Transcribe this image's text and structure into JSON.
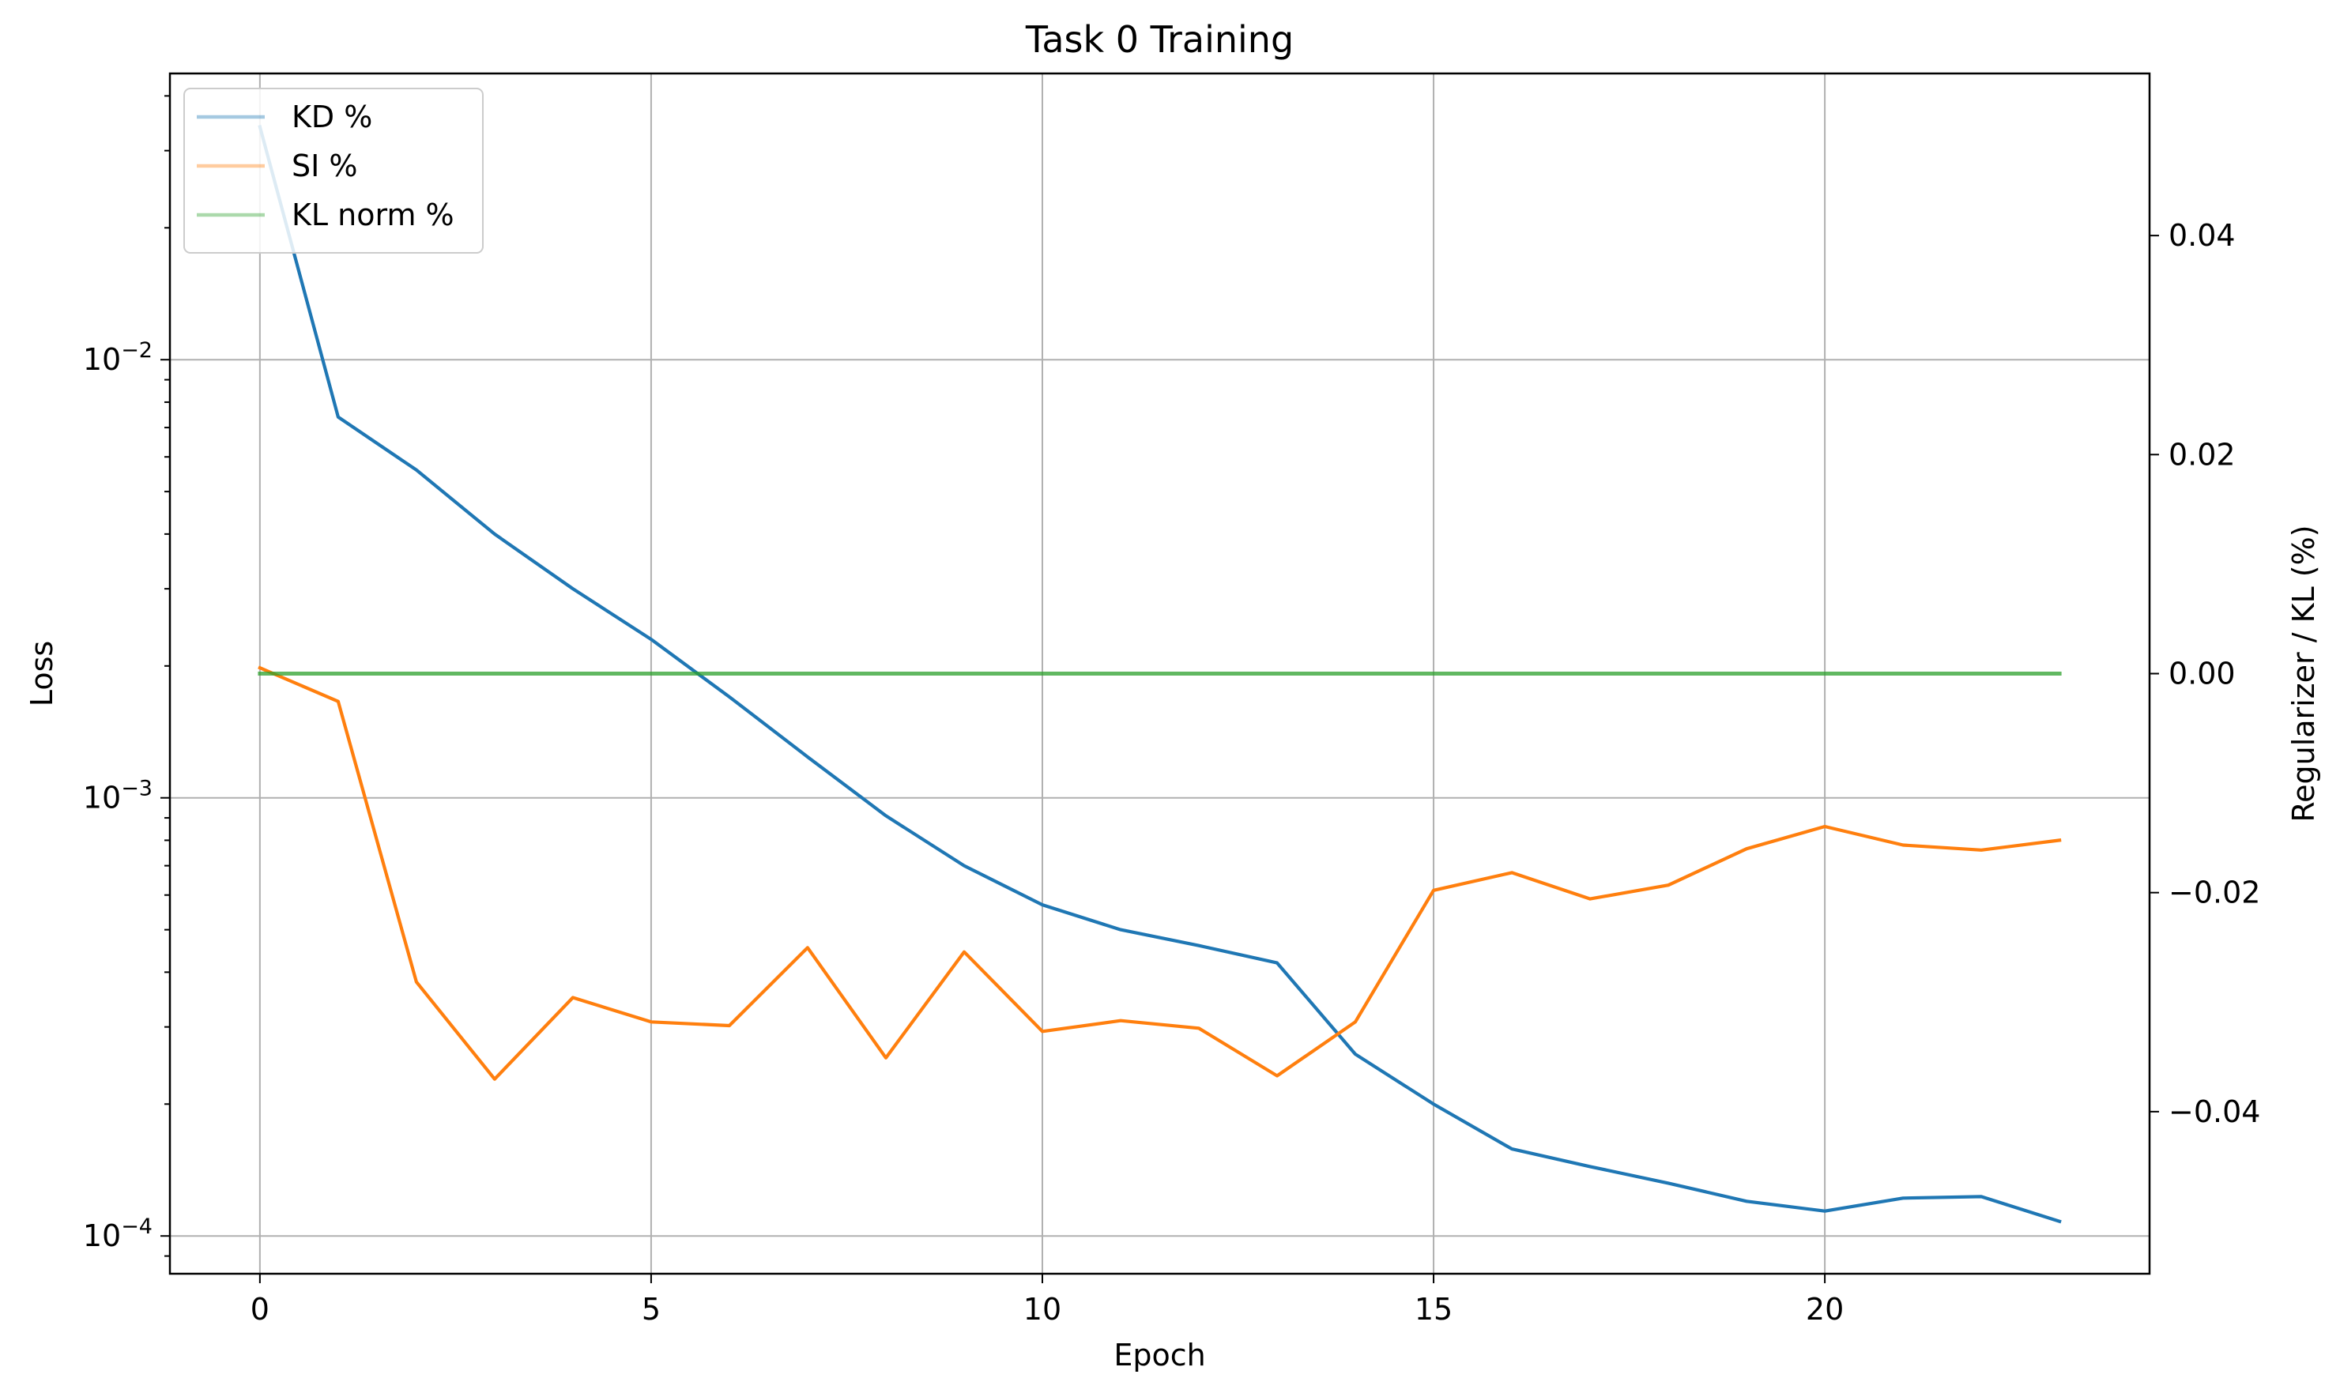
{
  "chart_data": {
    "type": "line",
    "title": "Task 0 Training",
    "xlabel": "Epoch",
    "ylabel": "Loss",
    "y2label": "Regularizer / KL (%)",
    "xlim": [
      -1.15,
      24.15
    ],
    "xticks": [
      0,
      5,
      10,
      15,
      20
    ],
    "ylim_log": [
      8.2e-05,
      0.045
    ],
    "yscale": "log",
    "yticks": [
      {
        "value": 0.01,
        "base": "10",
        "exp": "−2"
      },
      {
        "value": 0.001,
        "base": "10",
        "exp": "−3"
      },
      {
        "value": 0.0001,
        "base": "10",
        "exp": "−4"
      }
    ],
    "y2lim": [
      -0.0548,
      0.0548
    ],
    "y2ticks": [
      0.04,
      0.02,
      0.0,
      -0.02,
      -0.04
    ],
    "y2ticklabels": [
      "0.04",
      "0.02",
      "0.00",
      "−0.02",
      "−0.04"
    ],
    "grid": true,
    "legend_position": "top-left",
    "x": [
      0,
      1,
      2,
      3,
      4,
      5,
      6,
      7,
      8,
      9,
      10,
      11,
      12,
      13,
      14,
      15,
      16,
      17,
      18,
      19,
      20,
      21,
      22,
      23
    ],
    "series": [
      {
        "name": "KD %",
        "axis": "left",
        "color": "#1f77b4",
        "values": [
          0.034,
          0.0074,
          0.0056,
          0.004,
          0.003,
          0.0023,
          0.0017,
          0.00124,
          0.00091,
          0.0007,
          0.00057,
          0.0005,
          0.00046,
          0.00042,
          0.00026,
          0.0002,
          0.000158,
          0.000144,
          0.000132,
          0.00012,
          0.000114,
          0.000122,
          0.000123,
          0.000108
        ]
      },
      {
        "name": "SI %",
        "axis": "left",
        "color": "#ff7f0e",
        "values": [
          0.00198,
          0.00166,
          0.00038,
          0.000228,
          0.00035,
          0.000308,
          0.000302,
          0.000455,
          0.000255,
          0.000445,
          0.000293,
          0.00031,
          0.000298,
          0.000232,
          0.000308,
          0.000615,
          0.000675,
          0.000588,
          0.000632,
          0.000765,
          0.00086,
          0.00078,
          0.00076,
          0.0008
        ]
      },
      {
        "name": "KL norm %",
        "axis": "right",
        "color": "#2ca02c",
        "values": [
          0,
          0,
          0,
          0,
          0,
          0,
          0,
          0,
          0,
          0,
          0,
          0,
          0,
          0,
          0,
          0,
          0,
          0,
          0,
          0,
          0,
          0,
          0,
          0
        ]
      }
    ]
  }
}
